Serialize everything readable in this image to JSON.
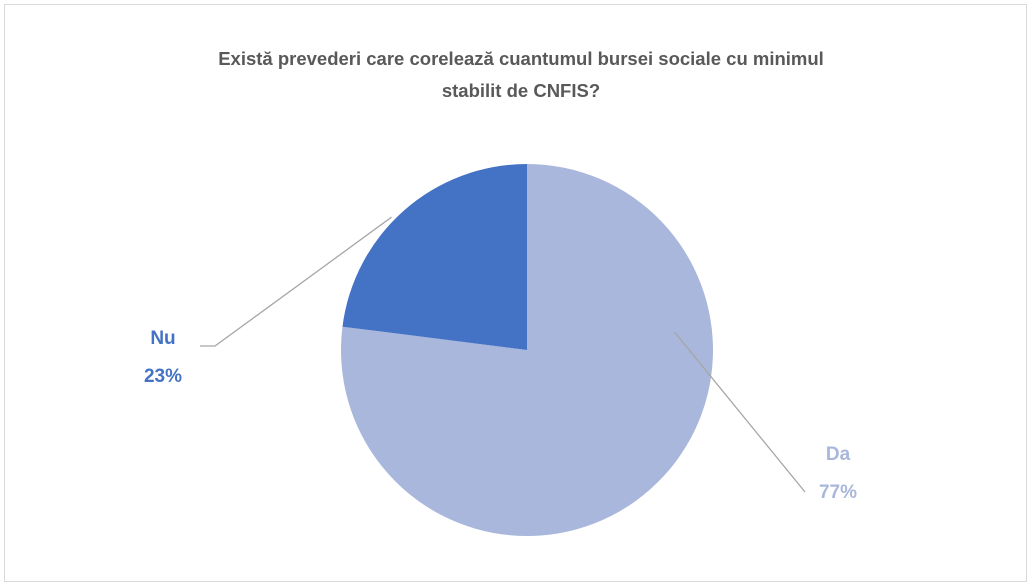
{
  "chart_data": {
    "type": "pie",
    "title": "Există prevederi care corelează cuantumul bursei sociale cu minimul stabilit de CNFIS?",
    "categories": [
      "Da",
      "Nu"
    ],
    "values": [
      77,
      23
    ],
    "value_labels": [
      "77%",
      "23%"
    ],
    "colors": [
      "#a9b7dc",
      "#4472c4"
    ]
  }
}
